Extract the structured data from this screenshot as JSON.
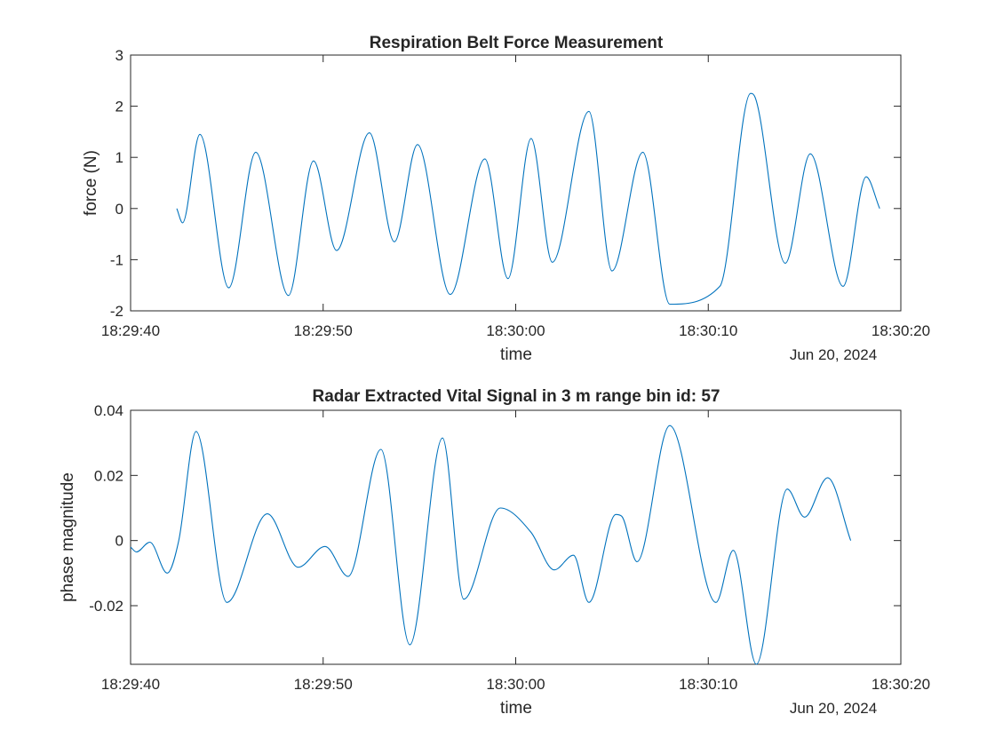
{
  "colors": {
    "line": "#0072BD",
    "axes": "#262626",
    "background": "#ffffff"
  },
  "chart_data": [
    {
      "type": "line",
      "title": "Respiration Belt Force Measurement",
      "xlabel": "time",
      "ylabel": "force (N)",
      "date_label": "Jun 20, 2024",
      "x_ticks": [
        "18:29:40",
        "18:29:50",
        "18:30:00",
        "18:30:10",
        "18:30:20"
      ],
      "y_ticks": [
        "-2",
        "-1",
        "0",
        "1",
        "2",
        "3"
      ],
      "xlim": [
        "18:29:40",
        "18:30:20"
      ],
      "ylim": [
        -2,
        3
      ],
      "grid": false,
      "series": [
        {
          "x": [
            "18:29:42.4",
            "18:29:42.7",
            "18:29:43.6",
            "18:29:45.1",
            "18:29:46.5",
            "18:29:48.2",
            "18:29:49.5",
            "18:29:50.7",
            "18:29:52.4",
            "18:29:53.7",
            "18:29:54.9",
            "18:29:56.6",
            "18:29:58.4",
            "18:29:59.6",
            "18:30:00.8",
            "18:30:01.9",
            "18:30:03.8",
            "18:30:05.0",
            "18:30:06.6",
            "18:30:08.0",
            "18:30:10.6",
            "18:30:12.2",
            "18:30:12.4",
            "18:30:14.0",
            "18:30:15.3",
            "18:30:17.0",
            "18:30:18.2",
            "18:30:18.9"
          ],
          "y": [
            0.0,
            -0.28,
            1.45,
            -1.55,
            1.1,
            -1.7,
            0.93,
            -0.82,
            1.48,
            -0.65,
            1.25,
            -1.68,
            0.97,
            -1.37,
            1.37,
            -1.05,
            1.9,
            -1.22,
            1.1,
            -1.87,
            -1.52,
            2.25,
            2.2,
            -1.07,
            1.07,
            -1.52,
            0.62,
            0.0
          ]
        }
      ]
    },
    {
      "type": "line",
      "title": "Radar Extracted Vital Signal in 3 m range bin id: 57",
      "xlabel": "time",
      "ylabel": "phase magnitude",
      "date_label": "Jun 20, 2024",
      "x_ticks": [
        "18:29:40",
        "18:29:50",
        "18:30:00",
        "18:30:10",
        "18:30:20"
      ],
      "y_ticks": [
        "-0.02",
        "0",
        "0.02",
        "0.04"
      ],
      "xlim": [
        "18:29:40",
        "18:30:20"
      ],
      "ylim": [
        -0.038,
        0.04
      ],
      "grid": false,
      "series": [
        {
          "x": [
            "18:29:40.0",
            "18:29:40.3",
            "18:29:41.0",
            "18:29:41.9",
            "18:29:42.5",
            "18:29:43.4",
            "18:29:45.0",
            "18:29:47.1",
            "18:29:48.7",
            "18:29:50.1",
            "18:29:51.3",
            "18:29:53.0",
            "18:29:54.5",
            "18:29:56.2",
            "18:29:57.3",
            "18:29:59.2",
            "18:30:00.8",
            "18:30:02.0",
            "18:30:03.0",
            "18:30:03.8",
            "18:30:05.2",
            "18:30:05.5",
            "18:30:06.3",
            "18:30:08.0",
            "18:30:10.4",
            "18:30:11.3",
            "18:30:12.5",
            "18:30:14.1",
            "18:30:15.0",
            "18:30:16.2",
            "18:30:17.4"
          ],
          "y": [
            -0.002,
            -0.0035,
            -0.0005,
            -0.01,
            0.0,
            0.0335,
            -0.019,
            0.0082,
            -0.0082,
            -0.0018,
            -0.011,
            0.028,
            -0.032,
            0.0315,
            -0.018,
            0.01,
            0.0025,
            -0.009,
            -0.0045,
            -0.019,
            0.008,
            0.0075,
            -0.0065,
            0.0353,
            -0.019,
            -0.003,
            -0.038,
            0.0158,
            0.0072,
            0.0193,
            0.0
          ]
        }
      ]
    }
  ]
}
